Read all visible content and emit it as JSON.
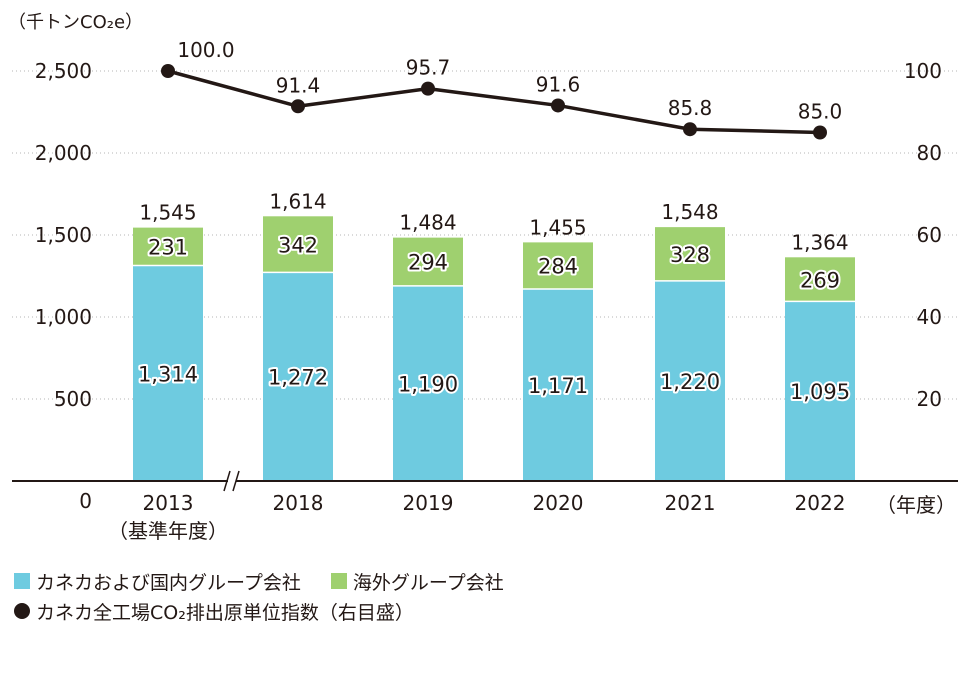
{
  "chart_data": {
    "type": "bar",
    "stacked": true,
    "unit_left": "（千トンCO₂e）",
    "unit_right": "",
    "x_unit": "（年度）",
    "categories": [
      "2013",
      "2018",
      "2019",
      "2020",
      "2021",
      "2022"
    ],
    "base_year_note": "（基準年度）",
    "y_left_ticks": [
      "0",
      "500",
      "1,000",
      "1,500",
      "2,000",
      "2,500"
    ],
    "y_left_lim": [
      0,
      2500
    ],
    "y_right_ticks": [
      "20",
      "40",
      "60",
      "80",
      "100"
    ],
    "y_right_lim": [
      0,
      100
    ],
    "series": [
      {
        "name": "カネカおよび国内グループ会社",
        "color": "#6ecbe0",
        "values": [
          1314,
          1272,
          1190,
          1171,
          1220,
          1095
        ],
        "labels": [
          "1,314",
          "1,272",
          "1,190",
          "1,171",
          "1,220",
          "1,095"
        ]
      },
      {
        "name": "海外グループ会社",
        "color": "#9fd06f",
        "values": [
          231,
          342,
          294,
          284,
          328,
          269
        ],
        "labels": [
          "231",
          "342",
          "294",
          "284",
          "328",
          "269"
        ]
      }
    ],
    "totals": [
      "1,545",
      "1,614",
      "1,484",
      "1,455",
      "1,548",
      "1,364"
    ],
    "index_series": {
      "name": "カネカ全工場CO₂排出原単位指数（右目盛）",
      "color": "#231815",
      "values": [
        100.0,
        91.4,
        95.7,
        91.6,
        85.8,
        85.0
      ],
      "labels": [
        "100.0",
        "91.4",
        "95.7",
        "91.6",
        "85.8",
        "85.0"
      ]
    },
    "axis_break_between": [
      "2013",
      "2018"
    ]
  },
  "legend": {
    "items": [
      {
        "label": "カネカおよび国内グループ会社",
        "color": "#6ecbe0"
      },
      {
        "label": "海外グループ会社",
        "color": "#9fd06f"
      },
      {
        "label": "カネカ全工場CO₂排出原単位指数（右目盛）",
        "color": "#231815"
      }
    ]
  }
}
